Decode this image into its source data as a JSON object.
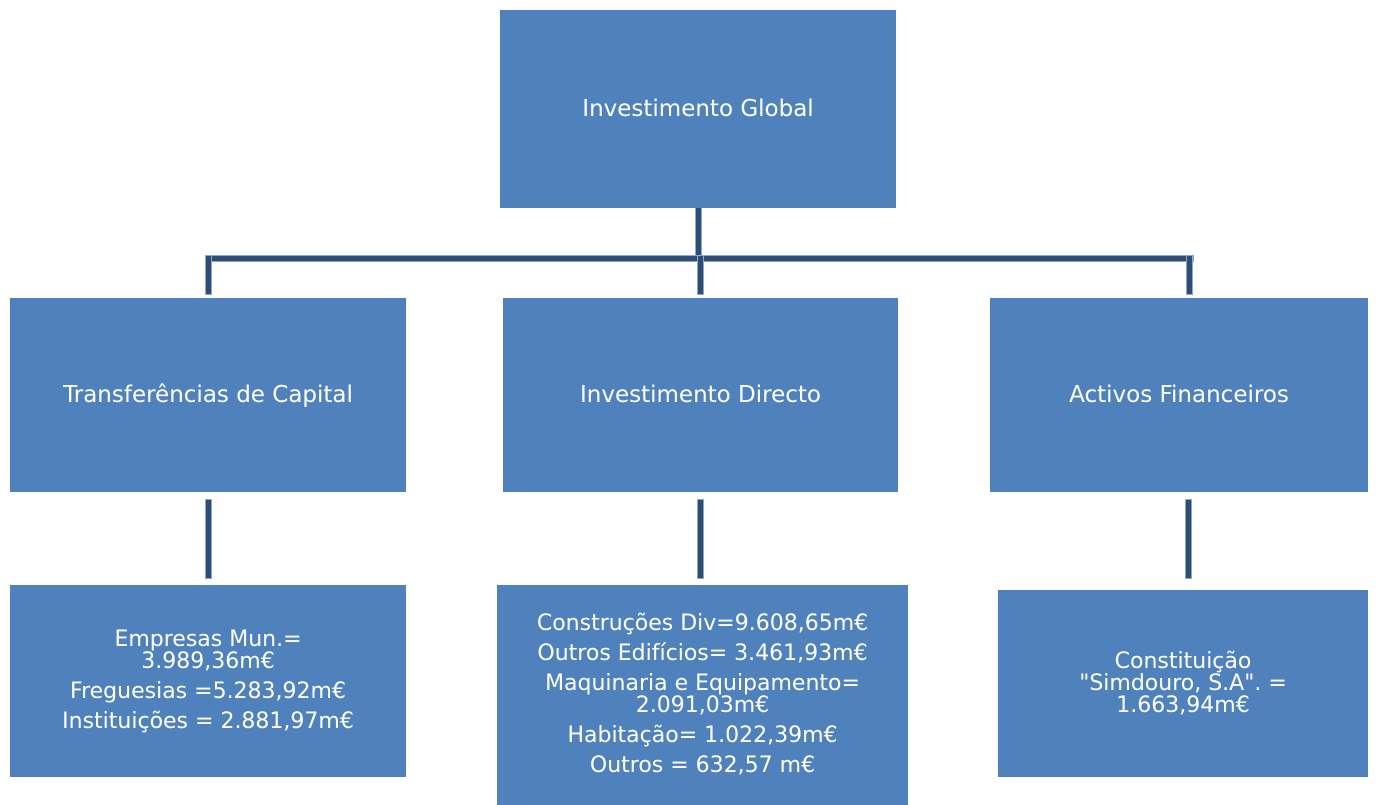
{
  "root": {
    "label": "Investimento Global"
  },
  "branches": [
    {
      "label": "Transferências de Capital",
      "items": [
        [
          "Empresas Mun.=",
          "3.989,36m€"
        ],
        [
          "Freguesias  =5.283,92m€"
        ],
        [
          "Instituições = 2.881,97m€"
        ]
      ]
    },
    {
      "label": "Investimento Directo",
      "items": [
        [
          "Construções Div=9.608,65m€"
        ],
        [
          "Outros Edifícios= 3.461,93m€"
        ],
        [
          "Maquinaria e Equipamento=",
          "2.091,03m€"
        ],
        [
          "Habitação= 1.022,39m€"
        ],
        [
          "Outros = 632,57 m€"
        ]
      ]
    },
    {
      "label": "Activos Financeiros",
      "items": [
        [
          "Constituição",
          "\"Simdouro, S.A\". =",
          "1.663,94m€"
        ]
      ]
    }
  ]
}
